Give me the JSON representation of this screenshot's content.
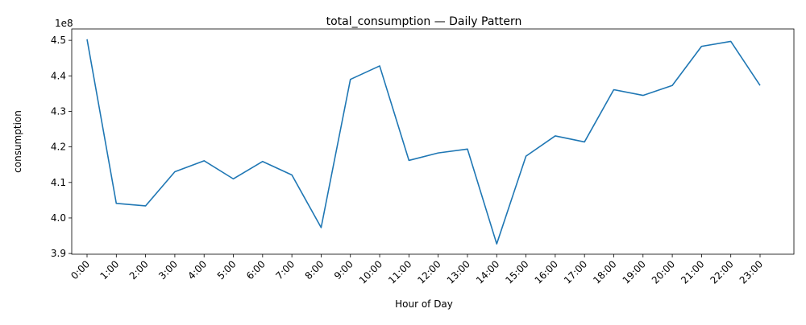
{
  "chart_data": {
    "type": "line",
    "title": "total_consumption — Daily Pattern",
    "xlabel": "Hour of Day",
    "ylabel": "consumption",
    "y_offset_label": "1e8",
    "y_scale": 100000000,
    "categories": [
      "0:00",
      "1:00",
      "2:00",
      "3:00",
      "4:00",
      "5:00",
      "6:00",
      "7:00",
      "8:00",
      "9:00",
      "10:00",
      "11:00",
      "12:00",
      "13:00",
      "14:00",
      "15:00",
      "16:00",
      "17:00",
      "18:00",
      "19:00",
      "20:00",
      "21:00",
      "22:00",
      "23:00"
    ],
    "series": [
      {
        "color": "#1f77b4",
        "values": [
          450300000,
          404100000,
          403400000,
          413000000,
          416100000,
          411000000,
          415900000,
          412100000,
          397300000,
          439000000,
          442800000,
          416200000,
          418300000,
          419400000,
          392700000,
          417400000,
          423100000,
          421400000,
          436100000,
          434500000,
          437300000,
          448300000,
          449700000,
          437300000
        ]
      }
    ],
    "yticks": [
      3.9,
      4.0,
      4.1,
      4.2,
      4.3,
      4.4,
      4.5
    ],
    "ylim": [
      389800000,
      453200000
    ],
    "grid": false,
    "legend": "none"
  }
}
